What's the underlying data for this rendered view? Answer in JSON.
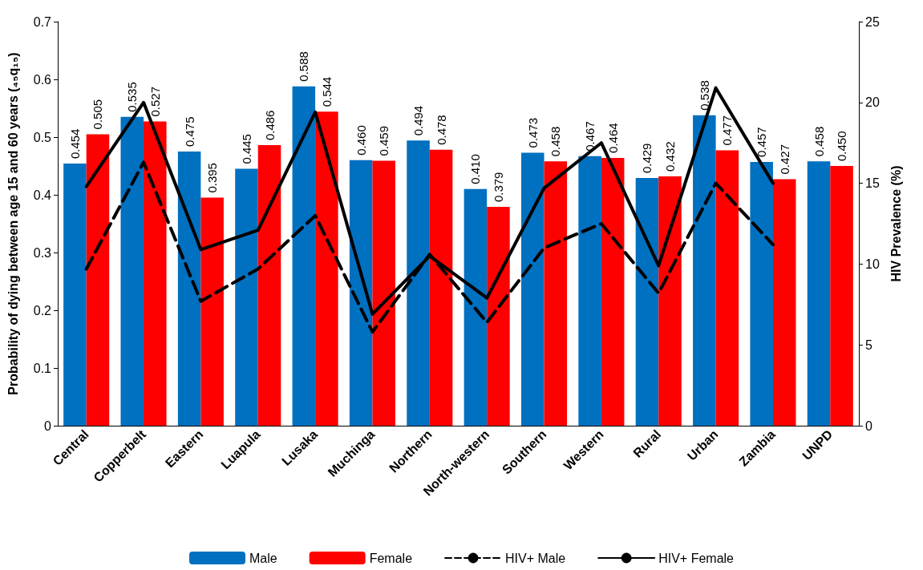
{
  "chart_data": {
    "type": "bar",
    "ylabel": "Probability of dying between age 15 and 60 years (₄₅q₁₅)",
    "y2label": "HIV Prevalence (%)",
    "categories": [
      "Central",
      "Copperbelt",
      "Eastern",
      "Luapula",
      "Lusaka",
      "Muchinga",
      "Northern",
      "North-western",
      "Southern",
      "Western",
      "Rural",
      "Urban",
      "Zambia",
      "UNPD"
    ],
    "series": [
      {
        "name": "Male",
        "color": "#0070c0",
        "values": [
          0.454,
          0.535,
          0.475,
          0.445,
          0.588,
          0.46,
          0.494,
          0.41,
          0.473,
          0.467,
          0.429,
          0.538,
          0.457,
          0.458
        ],
        "value_labels": [
          "0.454",
          "0.535",
          "0.475",
          "0.445",
          "0.588",
          "0.460",
          "0.494",
          "0.410",
          "0.473",
          "0.467",
          "0.429",
          "0.538",
          "0.457",
          "0.458"
        ]
      },
      {
        "name": "Female",
        "color": "#ff0000",
        "values": [
          0.505,
          0.527,
          0.395,
          0.486,
          0.544,
          0.459,
          0.478,
          0.379,
          0.458,
          0.464,
          0.432,
          0.477,
          0.427,
          0.45
        ],
        "value_labels": [
          "0.505",
          "0.527",
          "0.395",
          "0.486",
          "0.544",
          "0.459",
          "0.478",
          "0.379",
          "0.458",
          "0.464",
          "0.432",
          "0.477",
          "0.427",
          "0.450"
        ]
      },
      {
        "name": "HIV+ Male",
        "type": "line",
        "axis": "y2",
        "line_style": "dashed",
        "color": "#000000",
        "values": [
          9.7,
          16.3,
          7.7,
          9.7,
          13.0,
          5.8,
          10.6,
          6.4,
          11.0,
          12.5,
          8.2,
          15.0,
          11.2,
          null
        ]
      },
      {
        "name": "HIV+ Female",
        "type": "line",
        "axis": "y2",
        "line_style": "solid",
        "color": "#000000",
        "values": [
          14.8,
          20.0,
          10.9,
          12.1,
          19.4,
          6.9,
          10.5,
          7.9,
          14.7,
          17.5,
          9.9,
          20.9,
          15.0,
          null
        ]
      }
    ],
    "ylim": [
      0,
      0.7
    ],
    "yticks": [
      0,
      0.1,
      0.2,
      0.3,
      0.4,
      0.5,
      0.6,
      0.7
    ],
    "y2lim": [
      0,
      25
    ],
    "y2ticks": [
      0,
      5,
      10,
      15,
      20,
      25
    ],
    "grid": false,
    "legend": "bottom",
    "marker": "none"
  }
}
